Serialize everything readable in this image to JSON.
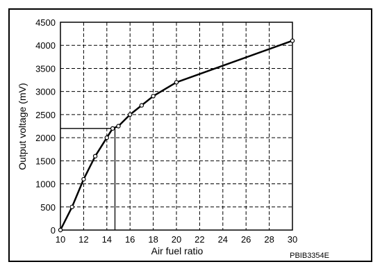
{
  "chart_data": {
    "type": "line",
    "title": "",
    "xlabel": "Air fuel ratio",
    "ylabel": "Output voltage (mV)",
    "xlim": [
      10,
      30
    ],
    "ylim": [
      0,
      4500
    ],
    "x_ticks": [
      10,
      12,
      14,
      16,
      18,
      20,
      22,
      24,
      26,
      28,
      30
    ],
    "y_ticks": [
      0,
      500,
      1000,
      1500,
      2000,
      2500,
      3000,
      3500,
      4000,
      4500
    ],
    "grid": true,
    "series": [
      {
        "x": [
          10,
          11,
          12,
          13,
          14,
          14.5,
          15,
          16,
          17,
          18,
          20,
          30
        ],
        "y": [
          0,
          500,
          1100,
          1600,
          2000,
          2200,
          2250,
          2500,
          2700,
          2900,
          3200,
          4100
        ]
      }
    ],
    "reference_point": {
      "x": 14.7,
      "y": 2200
    },
    "figure_code": "PBIB3354E"
  }
}
